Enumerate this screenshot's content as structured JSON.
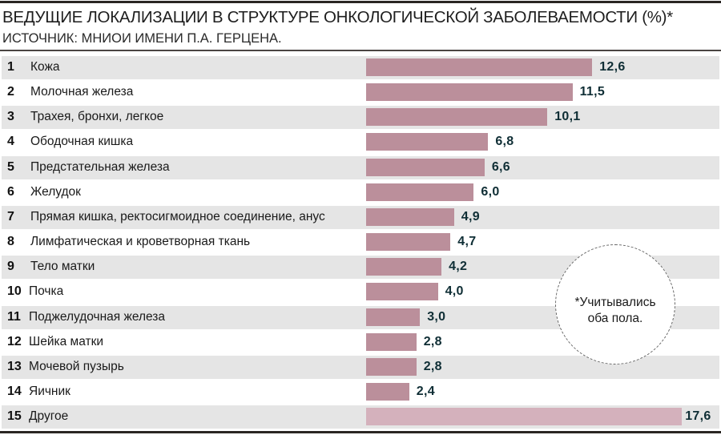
{
  "header": {
    "title": "ВЕДУЩИЕ ЛОКАЛИЗАЦИИ В СТРУКТУРЕ ОНКОЛОГИЧЕСКОЙ ЗАБОЛЕВАЕМОСТИ (%)*",
    "source": "ИСТОЧНИК: МНИОИ ИМЕНИ П.А. ГЕРЦЕНА."
  },
  "note": {
    "line1": "*Учитывались",
    "line2": "оба пола."
  },
  "colors": {
    "bar": "#bb8f9b",
    "bar_other": "#d4b1bc",
    "value_text": "#0f2e35",
    "row_shade": "#e5e5e5",
    "rule": "#2a2623"
  },
  "chart_data": {
    "type": "bar",
    "orientation": "horizontal",
    "title": "ВЕДУЩИЕ ЛОКАЛИЗАЦИИ В СТРУКТУРЕ ОНКОЛОГИЧЕСКОЙ ЗАБОЛЕВАЕМОСТИ (%)*",
    "subtitle": "ИСТОЧНИК: МНИОИ ИМЕНИ П.А. ГЕРЦЕНА.",
    "xlabel": "",
    "ylabel": "",
    "grid": false,
    "xlim": [
      0,
      17.6
    ],
    "ranks": [
      "1",
      "2",
      "3",
      "4",
      "5",
      "6",
      "7",
      "8",
      "9",
      "10",
      "11",
      "12",
      "13",
      "14",
      "15"
    ],
    "categories": [
      "Кожа",
      "Молочная железа",
      "Трахея, бронхи, легкое",
      "Ободочная кишка",
      "Предстательная железа",
      "Желудок",
      "Прямая кишка, ректосигмоидное соединение, анус",
      "Лимфатическая и кроветворная ткань",
      "Тело матки",
      "Почка",
      "Поджелудочная железа",
      "Шейка матки",
      "Мочевой пузырь",
      "Яичник",
      "Другое"
    ],
    "values": [
      12.6,
      11.5,
      10.1,
      6.8,
      6.6,
      6.0,
      4.9,
      4.7,
      4.2,
      4.0,
      3.0,
      2.8,
      2.8,
      2.4,
      17.6
    ],
    "value_labels": [
      "12,6",
      "11,5",
      "10,1",
      "6,8",
      "6,6",
      "6,0",
      "4,9",
      "4,7",
      "4,2",
      "4,0",
      "3,0",
      "2,8",
      "2,8",
      "2,4",
      "17,6"
    ],
    "annotation": "*Учитывались оба пола."
  }
}
